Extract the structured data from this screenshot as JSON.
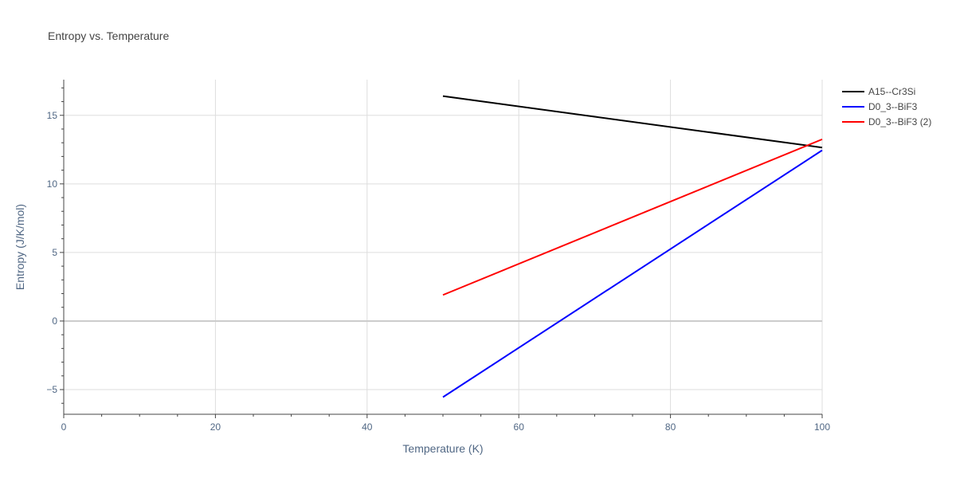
{
  "chart_data": {
    "type": "line",
    "title": "Entropy vs. Temperature",
    "xlabel": "Temperature (K)",
    "ylabel": "Entropy (J/K/mol)",
    "xlim": [
      0,
      100
    ],
    "ylim": [
      -6.8,
      17.6
    ],
    "xticks": [
      0,
      20,
      40,
      60,
      80,
      100
    ],
    "xtick_labels": [
      "0",
      "20",
      "40",
      "60",
      "80",
      "100"
    ],
    "yticks": [
      -5,
      0,
      5,
      10,
      15
    ],
    "ytick_labels": [
      "−5",
      "0",
      "5",
      "10",
      "15"
    ],
    "grid": true,
    "legend_position": "top-right",
    "series": [
      {
        "name": "A15--Cr3Si",
        "color": "#000000",
        "x": [
          50,
          100
        ],
        "y": [
          16.4,
          12.65
        ]
      },
      {
        "name": "D0_3--BiF3",
        "color": "#0000ff",
        "x": [
          50,
          100
        ],
        "y": [
          -5.55,
          12.45
        ]
      },
      {
        "name": "D0_3--BiF3 (2)",
        "color": "#ff0000",
        "x": [
          50,
          100
        ],
        "y": [
          1.9,
          13.25
        ]
      }
    ]
  }
}
